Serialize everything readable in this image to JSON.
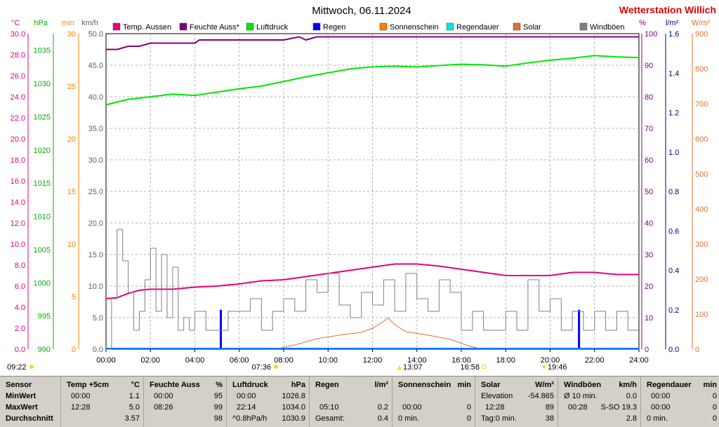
{
  "header": {
    "title": "Mittwoch, 06.11.2024",
    "station": "Wetterstation Willich"
  },
  "axis_units": {
    "temp": "°C",
    "pressure": "hPa",
    "minutes": "min",
    "wind": "km/h",
    "humidity": "%",
    "rain": "l/m²",
    "solar": "W/m²"
  },
  "legend": [
    {
      "label": "Temp. Aussen",
      "color": "#e6007e"
    },
    {
      "label": "Feuchte Auss*",
      "color": "#800080"
    },
    {
      "label": "Luftdruck",
      "color": "#00e600"
    },
    {
      "label": "Regen",
      "color": "#0000ff"
    },
    {
      "label": "Sonnenschein",
      "color": "#ff8000"
    },
    {
      "label": "Regendauer",
      "color": "#00e6e6"
    },
    {
      "label": "Solar",
      "color": "#e07030"
    },
    {
      "label": "Windböen",
      "color": "#808080"
    }
  ],
  "sun_events": {
    "left_time": "09:22",
    "sunrise": "07:36",
    "noon": "13:07",
    "sunset": "16:58",
    "moon": "19:46"
  },
  "chart_data": {
    "type": "line",
    "x_range": [
      0,
      24
    ],
    "x_ticks": [
      "00:00",
      "02:00",
      "04:00",
      "06:00",
      "08:00",
      "10:00",
      "12:00",
      "14:00",
      "16:00",
      "18:00",
      "20:00",
      "22:00",
      "24:00"
    ],
    "axes": {
      "temp_c": {
        "range": [
          0,
          30
        ],
        "ticks": [
          "0.0",
          "2.0",
          "4.0",
          "6.0",
          "8.0",
          "10.0",
          "12.0",
          "14.0",
          "16.0",
          "18.0",
          "20.0",
          "22.0",
          "24.0",
          "26.0",
          "28.0",
          "30.0"
        ]
      },
      "pressure_hpa": {
        "range": [
          990,
          1037.5
        ],
        "ticks": [
          "990",
          "995",
          "1000",
          "1005",
          "1010",
          "1015",
          "1020",
          "1025",
          "1030",
          "1035"
        ]
      },
      "minutes": {
        "range": [
          0,
          30
        ],
        "ticks": [
          "0",
          "5",
          "10",
          "15",
          "20",
          "25",
          "30"
        ]
      },
      "wind_kmh": {
        "range": [
          0,
          50
        ],
        "ticks": [
          "0.0",
          "5.0",
          "10.0",
          "15.0",
          "20.0",
          "25.0",
          "30.0",
          "35.0",
          "40.0",
          "45.0",
          "50.0"
        ]
      },
      "humidity_pct": {
        "range": [
          0,
          100
        ],
        "ticks": [
          "0",
          "10",
          "20",
          "30",
          "40",
          "50",
          "60",
          "70",
          "80",
          "90",
          "100"
        ]
      },
      "rain_lm2": {
        "range": [
          0,
          1.6
        ],
        "ticks": [
          "0.0",
          "0.2",
          "0.4",
          "0.6",
          "0.8",
          "1.0",
          "1.2",
          "1.4",
          "1.6"
        ]
      },
      "solar_wm2": {
        "range": [
          0,
          900
        ],
        "ticks": [
          "0",
          "100",
          "200",
          "300",
          "400",
          "500",
          "600",
          "700",
          "800",
          "900"
        ]
      }
    },
    "series": [
      {
        "name": "Temp. Aussen",
        "axis": "temp_c",
        "color": "#e6007e",
        "x": [
          0,
          0.5,
          1,
          1.5,
          2,
          3,
          4,
          5,
          6,
          7,
          8,
          9,
          10,
          11,
          12,
          13,
          14,
          15,
          16,
          17,
          18,
          19,
          20,
          21,
          22,
          23,
          24
        ],
        "y": [
          4.8,
          4.9,
          5.3,
          5.6,
          5.7,
          5.7,
          5.9,
          6.0,
          6.2,
          6.5,
          6.6,
          6.9,
          7.2,
          7.5,
          7.8,
          8.1,
          8.1,
          7.9,
          7.6,
          7.3,
          7.0,
          7.0,
          7.0,
          7.3,
          7.3,
          7.1,
          7.1
        ]
      },
      {
        "name": "Feuchte Auss*",
        "axis": "humidity_pct",
        "color": "#800080",
        "x": [
          0,
          0.5,
          1,
          1.5,
          2,
          3,
          4,
          4.2,
          5,
          6,
          7,
          8,
          8.7,
          9,
          9.5,
          10,
          12,
          14,
          16,
          18,
          20,
          22,
          24
        ],
        "y": [
          95,
          95,
          96,
          96,
          97,
          97,
          97,
          98,
          98,
          98,
          98,
          98,
          99,
          98,
          99,
          99,
          99,
          99,
          99,
          99,
          99,
          99,
          99
        ]
      },
      {
        "name": "Luftdruck",
        "axis": "pressure_hpa",
        "color": "#00e600",
        "x": [
          0,
          1,
          2,
          3,
          4,
          5,
          6,
          7,
          8,
          9,
          10,
          11,
          12,
          13,
          14,
          15,
          16,
          17,
          18,
          19,
          20,
          21,
          22,
          23,
          24
        ],
        "y": [
          1026.8,
          1027.6,
          1028.0,
          1028.4,
          1028.2,
          1028.7,
          1029.2,
          1029.6,
          1030.3,
          1031.0,
          1031.6,
          1032.2,
          1032.5,
          1032.6,
          1032.5,
          1032.7,
          1032.9,
          1032.8,
          1032.6,
          1033.1,
          1033.5,
          1033.8,
          1034.2,
          1034.0,
          1033.9
        ]
      },
      {
        "name": "Regen",
        "axis": "rain_lm2",
        "type": "bar",
        "color": "#0000ff",
        "x": [
          5.17,
          21.3
        ],
        "y": [
          0.2,
          0.2
        ]
      },
      {
        "name": "Solar",
        "axis": "solar_wm2",
        "color": "#e07030",
        "x": [
          7.6,
          8.5,
          9.5,
          10.5,
          11.5,
          12.0,
          12.4,
          12.7,
          13.0,
          13.5,
          14.5,
          15.5,
          16.3,
          16.9
        ],
        "y": [
          0,
          12,
          30,
          40,
          48,
          60,
          75,
          89,
          70,
          50,
          40,
          28,
          10,
          0
        ]
      },
      {
        "name": "Windböen",
        "axis": "wind_kmh",
        "color": "#808080",
        "x": [
          0,
          0.25,
          0.5,
          0.75,
          1,
          1.25,
          1.5,
          1.75,
          2,
          2.25,
          2.5,
          2.75,
          3,
          3.25,
          3.5,
          3.75,
          4,
          4.5,
          5,
          5.5,
          6,
          6.5,
          7,
          7.5,
          8,
          8.5,
          9,
          9.5,
          10,
          10.5,
          11,
          11.5,
          12,
          12.5,
          13,
          13.5,
          14,
          14.5,
          15,
          15.5,
          16,
          16.5,
          17,
          17.5,
          18,
          18.5,
          19,
          19.5,
          20,
          20.5,
          21,
          21.5,
          22,
          22.5,
          23,
          23.5,
          24
        ],
        "y": [
          0,
          8,
          19,
          14,
          9,
          3,
          6,
          11,
          16,
          6,
          15,
          5,
          13,
          3,
          5,
          3,
          6,
          3,
          3,
          6,
          6,
          8,
          3,
          6,
          8,
          6,
          11,
          9,
          12,
          7,
          5,
          9,
          7,
          11,
          6,
          12,
          8,
          6,
          11,
          9,
          3,
          6,
          3,
          3,
          6,
          3,
          11,
          6,
          8,
          3,
          6,
          3,
          6,
          3,
          6,
          3,
          3
        ]
      }
    ]
  },
  "footer": {
    "sensor": {
      "title": "Sensor",
      "rows": [
        "MinWert",
        "MaxWert",
        "Durchschnitt"
      ]
    },
    "temp": {
      "title": "Temp +5cm",
      "unit": "°C",
      "min_time": "00:00",
      "min_val": "1.1",
      "max_time": "12:28",
      "max_val": "5.0",
      "avg": "3.57"
    },
    "humidity": {
      "title": "Feuchte Auss",
      "unit": "%",
      "min_time": "00:00",
      "min_val": "95",
      "max_time": "08:26",
      "max_val": "99",
      "avg": "98"
    },
    "pressure": {
      "title": "Luftdruck",
      "unit": "hPa",
      "min_time": "00:00",
      "min_val": "1026.8",
      "max_time": "22:14",
      "max_val": "1034.0",
      "trend": "^0.8hPa/h",
      "avg": "1030.9"
    },
    "rain": {
      "title": "Regen",
      "unit": "l/m²",
      "max_time": "05:10",
      "max_val": "0.2",
      "total_label": "Gesamt:",
      "total": "0.4"
    },
    "sunshine": {
      "title": "Sonnenschein",
      "unit": "min",
      "max_time": "00:00",
      "max_val": "0",
      "total_label": "0 min.",
      "total": "0"
    },
    "solar": {
      "title": "Solar",
      "unit": "W/m²",
      "elev_label": "Elevation",
      "elev_val": "-54.865",
      "max_time": "12:28",
      "max_val": "89",
      "day_label": "Tag:0 min.",
      "avg": "38"
    },
    "wind": {
      "title": "Windböen",
      "unit": "km/h",
      "avg_label": "Ø 10 min.",
      "avg10": "0.0",
      "max_time": "00:28",
      "max_dir": "S-SO 19.3",
      "avg": "2.8"
    },
    "raindur": {
      "title": "Regendauer",
      "unit": "min",
      "min_time": "00:00",
      "min_val": "0",
      "max_time": "00:00",
      "max_val": "0",
      "total_label": "0 min.",
      "total": "0"
    }
  }
}
